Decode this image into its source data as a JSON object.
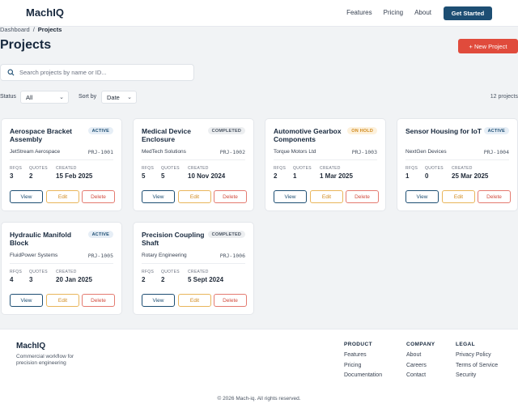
{
  "header": {
    "logo": "MachIQ",
    "nav": [
      "Features",
      "Pricing",
      "About"
    ],
    "cta_label": "Get Started"
  },
  "breadcrumb": {
    "root": "Dashboard",
    "sep": "/",
    "current": "Projects"
  },
  "page": {
    "title": "Projects",
    "new_button": "+ New Project",
    "search_placeholder": "Search projects by name or ID...",
    "status_label": "Status",
    "status_value": "All",
    "sort_label": "Sort by",
    "sort_value": "Date",
    "count": "12 projects"
  },
  "labels": {
    "rfqs": "RFQS",
    "quotes": "QUOTES",
    "created": "CREATED",
    "view": "View",
    "edit": "Edit",
    "delete": "Delete"
  },
  "projects": [
    {
      "title": "Aerospace Bracket Assembly",
      "status": "ACTIVE",
      "client": "JetStream Aerospace",
      "id": "PRJ-1001",
      "rfqs": "3",
      "quotes": "2",
      "created": "15 Feb 2025"
    },
    {
      "title": "Medical Device Enclosure",
      "status": "COMPLETED",
      "client": "MedTech Solutions",
      "id": "PRJ-1002",
      "rfqs": "5",
      "quotes": "5",
      "created": "10 Nov 2024"
    },
    {
      "title": "Automotive Gearbox Components",
      "status": "ON HOLD",
      "client": "Torque Motors Ltd",
      "id": "PRJ-1003",
      "rfqs": "2",
      "quotes": "1",
      "created": "1 Mar 2025"
    },
    {
      "title": "Sensor Housing for IoT",
      "status": "ACTIVE",
      "client": "NextGen Devices",
      "id": "PRJ-1004",
      "rfqs": "1",
      "quotes": "0",
      "created": "25 Mar 2025"
    },
    {
      "title": "Hydraulic Manifold Block",
      "status": "ACTIVE",
      "client": "FluidPower Systems",
      "id": "PRJ-1005",
      "rfqs": "4",
      "quotes": "3",
      "created": "20 Jan 2025"
    },
    {
      "title": "Precision Coupling Shaft",
      "status": "COMPLETED",
      "client": "Rotary Engineering",
      "id": "PRJ-1006",
      "rfqs": "2",
      "quotes": "2",
      "created": "5 Sept 2024"
    }
  ],
  "footer": {
    "logo": "MachIQ",
    "tagline": "Commercial workflow for precision engineering",
    "columns": [
      {
        "heading": "PRODUCT",
        "links": [
          "Features",
          "Pricing",
          "Documentation"
        ]
      },
      {
        "heading": "COMPANY",
        "links": [
          "About",
          "Careers",
          "Contact"
        ]
      },
      {
        "heading": "LEGAL",
        "links": [
          "Privacy Policy",
          "Terms of Service",
          "Security"
        ]
      }
    ],
    "copyright": "© 2026 Mach-iq. All rights reserved."
  },
  "colors": {
    "brand": "#1d4e73",
    "danger": "#e04b3c",
    "warning": "#d18a1d"
  },
  "icons": {
    "search": "search-icon",
    "dropdown": "chevron-down-icon"
  }
}
